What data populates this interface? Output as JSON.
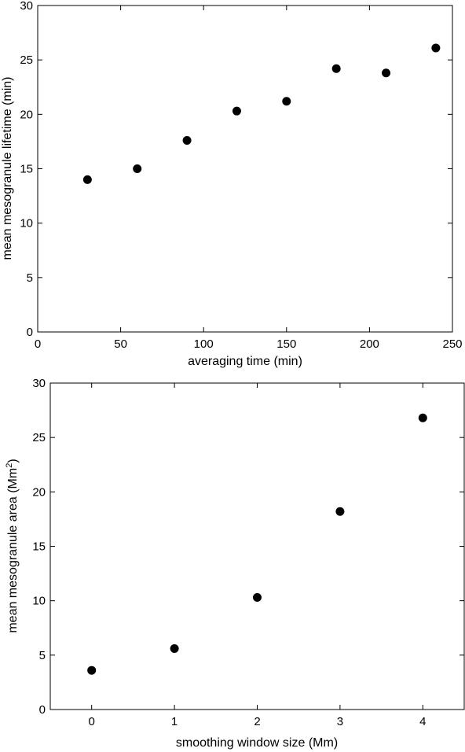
{
  "chart_data": [
    {
      "type": "scatter",
      "title": "",
      "xlabel": "averaging time (min)",
      "ylabel": "mean mesogranule lifetime (min)",
      "xlim": [
        0,
        250
      ],
      "ylim": [
        0,
        30
      ],
      "xticks": [
        0,
        50,
        100,
        150,
        200,
        250
      ],
      "yticks": [
        0,
        5,
        10,
        15,
        20,
        25,
        30
      ],
      "grid": false,
      "marker_color": "#000000",
      "series": [
        {
          "x": [
            30,
            60,
            90,
            120,
            150,
            180,
            210,
            240
          ],
          "y": [
            14.0,
            15.0,
            17.6,
            20.3,
            21.2,
            24.2,
            23.8,
            26.1
          ]
        }
      ]
    },
    {
      "type": "scatter",
      "title": "",
      "xlabel": "smoothing window size (Mm)",
      "ylabel": "mean mesogranule area (Mm",
      "ylabel_superscript": "2",
      "ylabel_suffix": ")",
      "xlim": [
        -0.5,
        4.5
      ],
      "ylim": [
        0,
        30
      ],
      "xticks": [
        0,
        1,
        2,
        3,
        4
      ],
      "yticks": [
        0,
        5,
        10,
        15,
        20,
        25,
        30
      ],
      "grid": false,
      "marker_color": "#000000",
      "series": [
        {
          "x": [
            0,
            1,
            2,
            3,
            4
          ],
          "y": [
            3.6,
            5.6,
            10.3,
            18.2,
            26.8
          ]
        }
      ]
    }
  ]
}
